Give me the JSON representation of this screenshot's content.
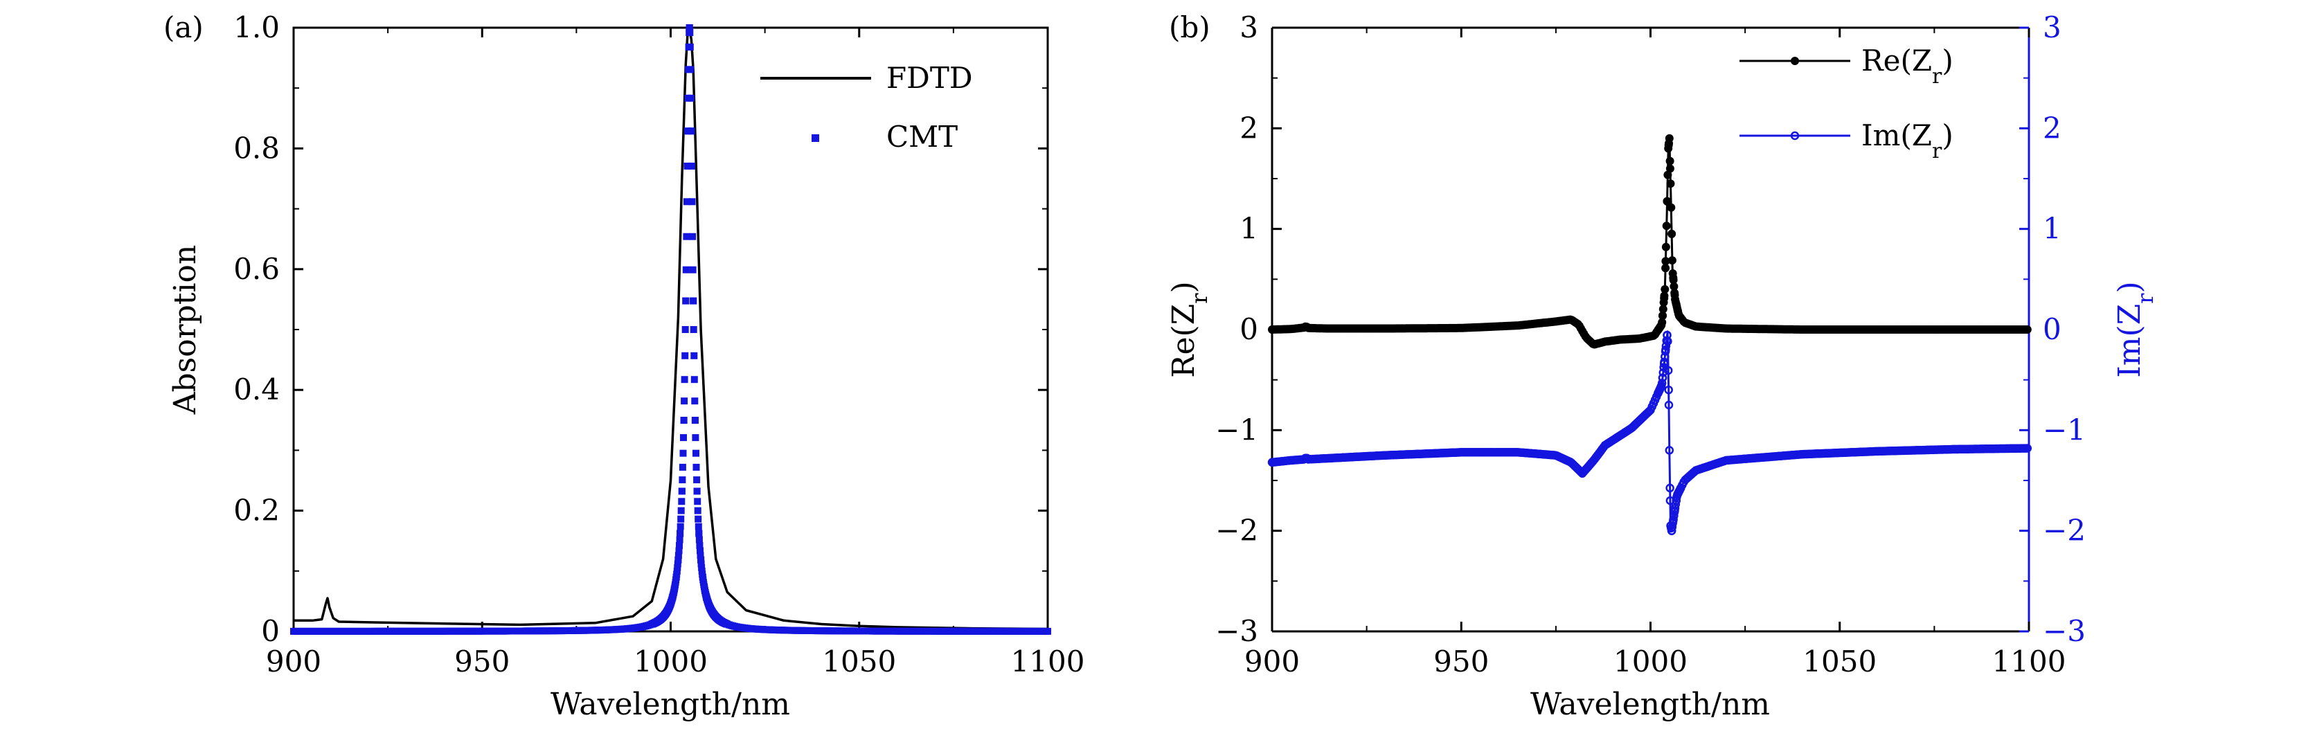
{
  "chart_data": [
    {
      "id": "a",
      "panel_label": "(a)",
      "type": "line",
      "xlabel": "Wavelength/nm",
      "ylabel": "Absorption",
      "xlim": [
        900,
        1100
      ],
      "ylim": [
        0,
        1.0
      ],
      "xticks": [
        900,
        950,
        1000,
        1050,
        1100
      ],
      "xtick_labels": [
        "900",
        "950",
        "1000",
        "1050",
        "1100"
      ],
      "yticks": [
        0,
        0.2,
        0.4,
        0.6,
        0.8,
        1.0
      ],
      "ytick_labels": [
        "0",
        "0.2",
        "0.4",
        "0.6",
        "0.8",
        "1.0"
      ],
      "legend_position": "top-right",
      "series": [
        {
          "name": "FDTD",
          "style": "line",
          "color": "#000000",
          "x": [
            900,
            905,
            907.5,
            908.5,
            909,
            909.5,
            910.5,
            912,
            920,
            940,
            960,
            980,
            990,
            995,
            998,
            1000,
            1002,
            1003,
            1004,
            1004.5,
            1005,
            1005.5,
            1006,
            1007,
            1008,
            1010,
            1012,
            1015,
            1020,
            1030,
            1040,
            1050,
            1060,
            1080,
            1100
          ],
          "y": [
            0.018,
            0.018,
            0.02,
            0.045,
            0.055,
            0.04,
            0.022,
            0.016,
            0.015,
            0.013,
            0.011,
            0.014,
            0.025,
            0.05,
            0.12,
            0.25,
            0.52,
            0.75,
            0.94,
            0.99,
            1.0,
            0.98,
            0.93,
            0.72,
            0.5,
            0.24,
            0.12,
            0.065,
            0.035,
            0.018,
            0.012,
            0.009,
            0.007,
            0.005,
            0.004
          ]
        },
        {
          "name": "CMT",
          "style": "markers",
          "color": "#1515e0",
          "model": {
            "center": 1005,
            "half_width": 1.1,
            "amplitude": 1.0
          }
        }
      ]
    },
    {
      "id": "b",
      "panel_label": "(b)",
      "type": "line",
      "xlabel": "Wavelength/nm",
      "ylabel": "Re(Z",
      "ylabel_sub": "r",
      "ylabel_close": ")",
      "y2label": "Im(Z",
      "y2label_sub": "r",
      "y2label_close": ")",
      "xlim": [
        900,
        1100
      ],
      "ylim": [
        -3,
        3
      ],
      "y2lim": [
        -3,
        3
      ],
      "xticks": [
        900,
        950,
        1000,
        1050,
        1100
      ],
      "xtick_labels": [
        "900",
        "950",
        "1000",
        "1050",
        "1100"
      ],
      "yticks": [
        -3,
        -2,
        -1,
        0,
        1,
        2,
        3
      ],
      "ytick_labels": [
        "−3",
        "−2",
        "−1",
        "0",
        "1",
        "2",
        "3"
      ],
      "y2tick_labels": [
        "−3",
        "−2",
        "−1",
        "0",
        "1",
        "2",
        "3"
      ],
      "legend_position": "top-right",
      "series": [
        {
          "name": "Re(Z",
          "name_sub": "r",
          "name_close": ")",
          "axis": "left",
          "color": "#000000",
          "x": [
            900,
            905,
            908.5,
            909,
            909.5,
            915,
            930,
            950,
            965,
            975,
            979,
            981,
            983,
            985,
            988,
            992,
            997,
            1001,
            1003,
            1003.8,
            1004.3,
            1004.7,
            1005,
            1005.4,
            1005.8,
            1006.5,
            1007.5,
            1009,
            1012,
            1020,
            1040,
            1060,
            1080,
            1100
          ],
          "y": [
            0.0,
            0.005,
            0.02,
            0.035,
            0.015,
            0.01,
            0.01,
            0.015,
            0.04,
            0.08,
            0.1,
            0.05,
            -0.08,
            -0.15,
            -0.12,
            -0.1,
            -0.09,
            -0.06,
            0.05,
            0.4,
            1.1,
            1.8,
            1.9,
            1.3,
            0.6,
            0.3,
            0.14,
            0.07,
            0.03,
            0.01,
            0.0,
            0.0,
            0.0,
            0.0
          ]
        },
        {
          "name": "Im(Z",
          "name_sub": "r",
          "name_close": ")",
          "axis": "right",
          "color": "#1515e0",
          "x": [
            900,
            905,
            908.5,
            909,
            909.5,
            930,
            950,
            965,
            975,
            979,
            982,
            985,
            988,
            995,
            1000,
            1003,
            1004,
            1004.5,
            1004.8,
            1005,
            1005.3,
            1005.6,
            1006.2,
            1007,
            1009,
            1012,
            1020,
            1040,
            1060,
            1080,
            1100
          ],
          "y": [
            -1.32,
            -1.3,
            -1.29,
            -1.27,
            -1.29,
            -1.25,
            -1.22,
            -1.22,
            -1.25,
            -1.32,
            -1.43,
            -1.3,
            -1.15,
            -0.98,
            -0.8,
            -0.55,
            -0.2,
            -0.02,
            -0.6,
            -1.2,
            -1.95,
            -2.0,
            -1.85,
            -1.65,
            -1.5,
            -1.4,
            -1.3,
            -1.24,
            -1.21,
            -1.19,
            -1.18
          ]
        }
      ]
    }
  ]
}
